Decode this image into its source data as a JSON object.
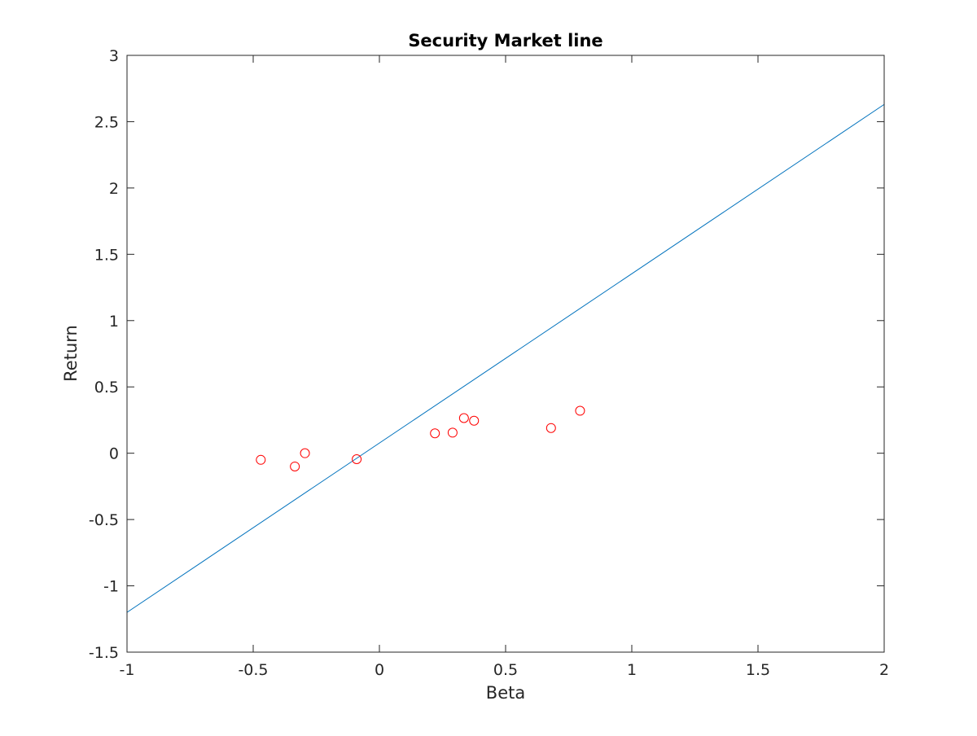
{
  "chart_data": {
    "type": "scatter",
    "title": "Security Market line",
    "xlabel": "Beta",
    "ylabel": "Return",
    "xlim": [
      -1,
      2
    ],
    "ylim": [
      -1.5,
      3
    ],
    "grid": false,
    "xticks": [
      -1,
      -0.5,
      0,
      0.5,
      1,
      1.5,
      2
    ],
    "xtick_labels": [
      "-1",
      "-0.5",
      "0",
      "0.5",
      "1",
      "1.5",
      "2"
    ],
    "yticks": [
      -1.5,
      -1,
      -0.5,
      0,
      0.5,
      1,
      1.5,
      2,
      2.5,
      3
    ],
    "ytick_labels": [
      "-1.5",
      "-1",
      "-0.5",
      "0",
      "0.5",
      "1",
      "1.5",
      "2",
      "2.5",
      "3"
    ],
    "series": [
      {
        "type": "line",
        "color": "#0072bd",
        "x": [
          -1,
          2
        ],
        "y": [
          -1.2,
          2.63
        ]
      },
      {
        "type": "scatter",
        "marker": "open-circle",
        "color": "#ff0000",
        "x": [
          -0.47,
          -0.335,
          -0.295,
          -0.09,
          0.22,
          0.29,
          0.335,
          0.375,
          0.68,
          0.795
        ],
        "y": [
          -0.05,
          -0.1,
          0.0,
          -0.045,
          0.15,
          0.155,
          0.265,
          0.245,
          0.19,
          0.32
        ]
      }
    ]
  }
}
